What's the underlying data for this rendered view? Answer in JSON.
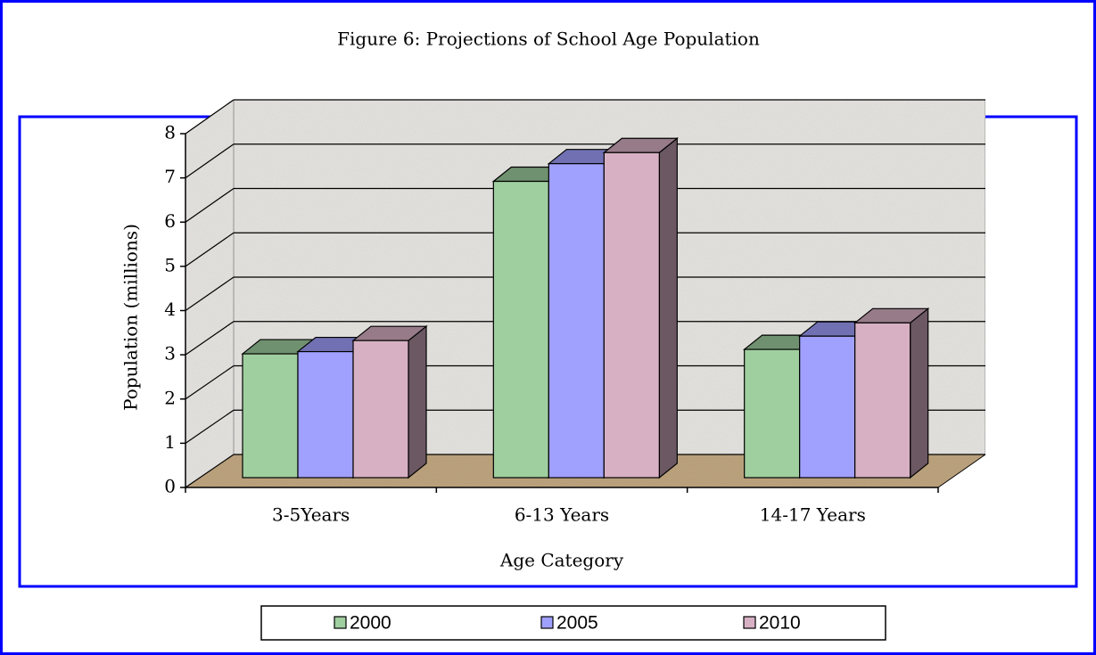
{
  "chart_data": {
    "type": "bar3d",
    "title": "Figure 6: Projections of School Age Population",
    "categories": [
      "3-5Years",
      "6-13 Years",
      "14-17 Years"
    ],
    "series": [
      {
        "name": "2000",
        "color": "#a0cf9f",
        "values": [
          2.8,
          6.7,
          2.9
        ]
      },
      {
        "name": "2005",
        "color": "#a0a0ff",
        "values": [
          2.85,
          7.1,
          3.2
        ]
      },
      {
        "name": "2010",
        "color": "#d8b0c4",
        "values": [
          3.1,
          7.35,
          3.5
        ]
      }
    ],
    "x_label": "Age Category",
    "y_label": "Population (millions)",
    "ylim": [
      0,
      8
    ],
    "yticks": [
      0,
      1,
      2,
      3,
      4,
      5,
      6,
      7,
      8
    ],
    "grid": true,
    "legend": "bottom"
  }
}
